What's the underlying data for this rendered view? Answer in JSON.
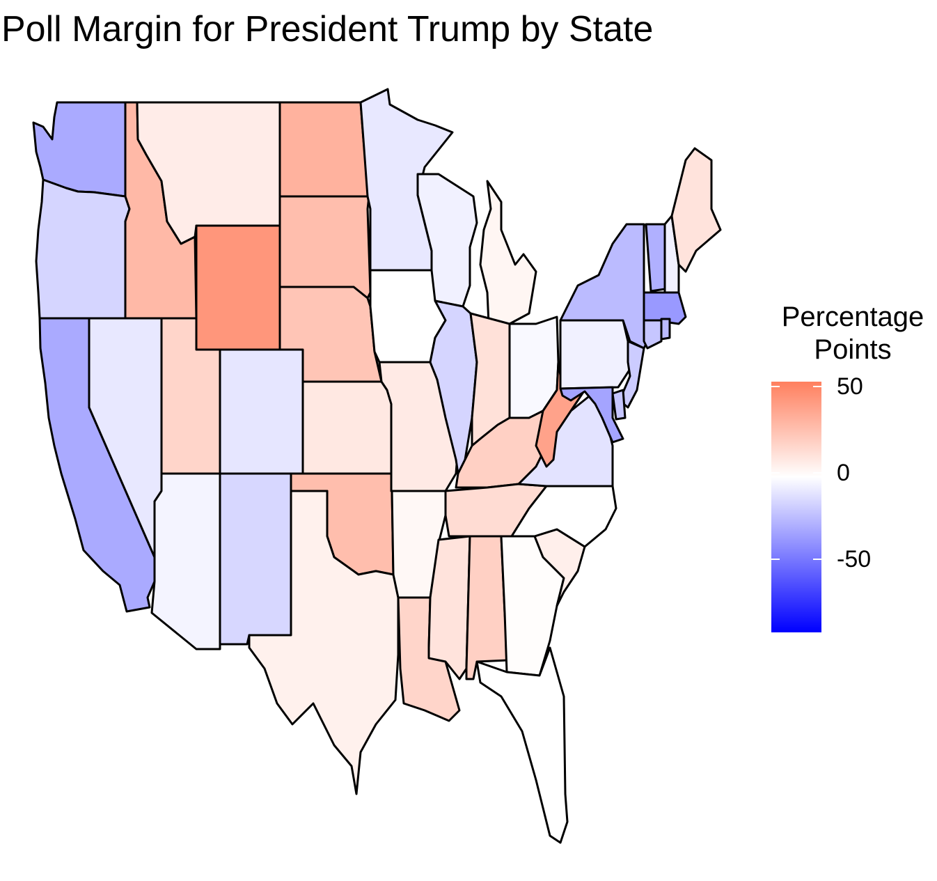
{
  "title": "Poll Margin for President Trump by State",
  "legend": {
    "title_line1": "Percentage",
    "title_line2": "Points",
    "ticks": [
      {
        "label": "50",
        "value": 50
      },
      {
        "label": "0",
        "value": 0
      },
      {
        "label": "-50",
        "value": -50
      }
    ],
    "range": [
      -90,
      55
    ],
    "low_color": "#0000ff",
    "mid_color": "#ffffff",
    "high_color": "#ff7f5e"
  },
  "chart_data": {
    "type": "choropleth",
    "title": "Poll Margin for President Trump by State",
    "legend_title": "Percentage Points",
    "scale": {
      "low": -90,
      "mid": 0,
      "high": 55,
      "low_color": "#0000ff",
      "mid_color": "#ffffff",
      "high_color": "#ff7f5e"
    },
    "legend_placement": "right",
    "states": [
      {
        "state": "Washington",
        "value": -30
      },
      {
        "state": "Oregon",
        "value": -15
      },
      {
        "state": "California",
        "value": -30
      },
      {
        "state": "Nevada",
        "value": -8
      },
      {
        "state": "Idaho",
        "value": 30
      },
      {
        "state": "Montana",
        "value": 8
      },
      {
        "state": "Wyoming",
        "value": 45
      },
      {
        "state": "Utah",
        "value": 18
      },
      {
        "state": "Arizona",
        "value": -4
      },
      {
        "state": "Colorado",
        "value": -9
      },
      {
        "state": "New Mexico",
        "value": -14
      },
      {
        "state": "North Dakota",
        "value": 33
      },
      {
        "state": "South Dakota",
        "value": 28
      },
      {
        "state": "Nebraska",
        "value": 25
      },
      {
        "state": "Kansas",
        "value": 10
      },
      {
        "state": "Oklahoma",
        "value": 28
      },
      {
        "state": "Texas",
        "value": 6
      },
      {
        "state": "Minnesota",
        "value": -8
      },
      {
        "state": "Iowa",
        "value": 0
      },
      {
        "state": "Missouri",
        "value": 9
      },
      {
        "state": "Arkansas",
        "value": 3
      },
      {
        "state": "Louisiana",
        "value": 18
      },
      {
        "state": "Wisconsin",
        "value": -5
      },
      {
        "state": "Illinois",
        "value": -15
      },
      {
        "state": "Michigan",
        "value": 4
      },
      {
        "state": "Indiana",
        "value": 13
      },
      {
        "state": "Ohio",
        "value": -2
      },
      {
        "state": "Kentucky",
        "value": 20
      },
      {
        "state": "Tennessee",
        "value": 15
      },
      {
        "state": "Mississippi",
        "value": 12
      },
      {
        "state": "Alabama",
        "value": 20
      },
      {
        "state": "Georgia",
        "value": 1
      },
      {
        "state": "Florida",
        "value": 0
      },
      {
        "state": "South Carolina",
        "value": 7
      },
      {
        "state": "North Carolina",
        "value": 0
      },
      {
        "state": "Virginia",
        "value": -10
      },
      {
        "state": "West Virginia",
        "value": 40
      },
      {
        "state": "Pennsylvania",
        "value": -5
      },
      {
        "state": "New York",
        "value": -24
      },
      {
        "state": "Vermont",
        "value": -28
      },
      {
        "state": "New Hampshire",
        "value": -5
      },
      {
        "state": "Maine",
        "value": 12
      },
      {
        "state": "Massachusetts",
        "value": -36
      },
      {
        "state": "Connecticut",
        "value": -20
      },
      {
        "state": "Rhode Island",
        "value": -24
      },
      {
        "state": "New Jersey",
        "value": -18
      },
      {
        "state": "Delaware",
        "value": -20
      },
      {
        "state": "Maryland",
        "value": -32
      }
    ]
  }
}
